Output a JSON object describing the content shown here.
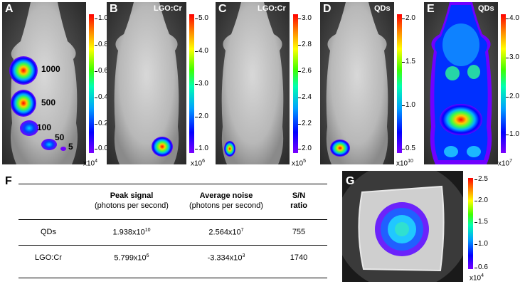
{
  "panels": [
    {
      "letter": "A",
      "tag": "",
      "scale_max_label": "1.0",
      "ticks": [
        "1.0",
        "0.8",
        "0.6",
        "0.4",
        "0.2",
        "0.0"
      ],
      "multiplier_base": "x10",
      "multiplier_exp": "4"
    },
    {
      "letter": "B",
      "tag": "LGO:Cr",
      "ticks": [
        "5.0",
        "4.0",
        "3.0",
        "2.0",
        "1.0"
      ],
      "multiplier_base": "x10",
      "multiplier_exp": "6"
    },
    {
      "letter": "C",
      "tag": "LGO:Cr",
      "ticks": [
        "3.0",
        "2.8",
        "2.6",
        "2.4",
        "2.2",
        "2.0"
      ],
      "multiplier_base": "x10",
      "multiplier_exp": "5"
    },
    {
      "letter": "D",
      "tag": "QDs",
      "ticks": [
        "2.0",
        "1.5",
        "1.0",
        "0.5"
      ],
      "multiplier_base": "x10",
      "multiplier_exp": "10"
    },
    {
      "letter": "E",
      "tag": "QDs",
      "ticks": [
        "4.0",
        "3.0",
        "2.0",
        "1.0"
      ],
      "multiplier_base": "x10",
      "multiplier_exp": "7"
    }
  ],
  "doses": [
    "1000",
    "500",
    "100",
    "50",
    "5"
  ],
  "table": {
    "letter": "F",
    "headers": [
      {
        "title": "Peak signal",
        "sub": "(photons per second)"
      },
      {
        "title": "Average noise",
        "sub": "(photons per second)"
      },
      {
        "title": "S/N",
        "sub": "ratio"
      }
    ],
    "rows": [
      {
        "label": "QDs",
        "peak_base": "1.938x10",
        "peak_exp": "10",
        "noise_base": "2.564x10",
        "noise_exp": "7",
        "sn": "755"
      },
      {
        "label": "LGO:Cr",
        "peak_base": "5.799x10",
        "peak_exp": "6",
        "noise_base": "-3.334x10",
        "noise_exp": "3",
        "sn": "1740"
      }
    ]
  },
  "panel_g": {
    "letter": "G",
    "ticks": [
      "2.5",
      "2.0",
      "1.5",
      "1.0",
      "0.6"
    ],
    "multiplier_base": "x10",
    "multiplier_exp": "4"
  }
}
